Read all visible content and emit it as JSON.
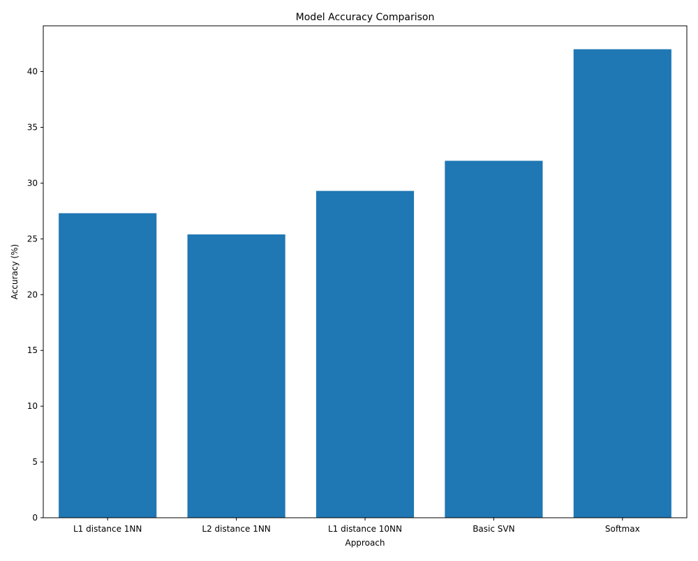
{
  "chart_data": {
    "type": "bar",
    "title": "Model Accuracy Comparison",
    "xlabel": "Approach",
    "ylabel": "Accuracy (%)",
    "categories": [
      "L1 distance 1NN",
      "L2 distance 1NN",
      "L1 distance 10NN",
      "Basic SVN",
      "Softmax"
    ],
    "values": [
      27.3,
      25.4,
      29.3,
      32.0,
      42.0
    ],
    "ylim": [
      0,
      44.1
    ],
    "yticks": [
      0,
      5,
      10,
      15,
      20,
      25,
      30,
      35,
      40
    ],
    "grid": false,
    "legend": "none",
    "bar_color": "#1f77b4"
  }
}
